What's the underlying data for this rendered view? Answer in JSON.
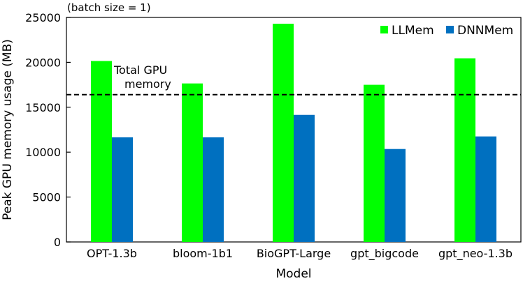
{
  "chart_data": {
    "type": "bar",
    "subtitle": "(batch size = 1)",
    "xlabel": "Model",
    "ylabel": "Peak GPU memory usage (MB)",
    "categories": [
      "OPT-1.3b",
      "bloom-1b1",
      "BioGPT-Large",
      "gpt_bigcode",
      "gpt_neo-1.3b"
    ],
    "series": [
      {
        "name": "LLMem",
        "color": "#00ff00",
        "values": [
          20150,
          17650,
          24300,
          17500,
          20450
        ]
      },
      {
        "name": "DNNMem",
        "color": "#0070c0",
        "values": [
          11650,
          11650,
          14150,
          10350,
          11750
        ]
      }
    ],
    "ylim": [
      0,
      25000
    ],
    "yticks": [
      0,
      5000,
      10000,
      15000,
      20000,
      25000
    ],
    "grid": false,
    "legend": "top-right",
    "reference_line": {
      "value": 16400,
      "label_line1": "Total GPU",
      "label_line2": "memory",
      "style": "dashed"
    }
  }
}
